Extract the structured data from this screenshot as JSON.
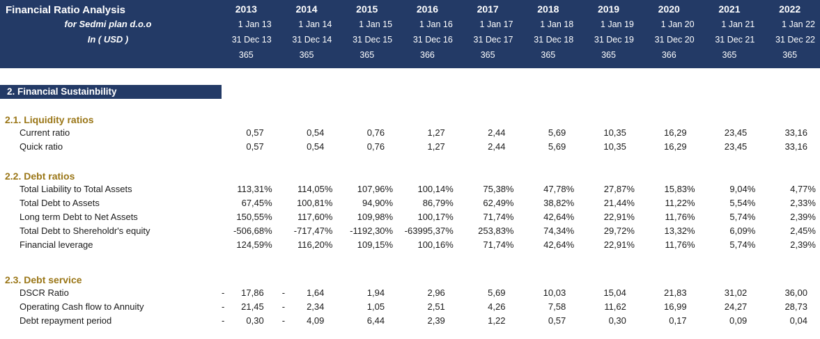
{
  "colors": {
    "navy": "#233A66",
    "gold": "#9A7617"
  },
  "header": {
    "title": "Financial Ratio Analysis",
    "company": "for Sedmi plan d.o.o",
    "currency": "In ( USD )",
    "columns": [
      {
        "year": "2013",
        "start": "1 Jan 13",
        "end": "31 Dec 13",
        "days": "365"
      },
      {
        "year": "2014",
        "start": "1 Jan 14",
        "end": "31 Dec 14",
        "days": "365"
      },
      {
        "year": "2015",
        "start": "1 Jan 15",
        "end": "31 Dec 15",
        "days": "365"
      },
      {
        "year": "2016",
        "start": "1 Jan 16",
        "end": "31 Dec 16",
        "days": "366"
      },
      {
        "year": "2017",
        "start": "1 Jan 17",
        "end": "31 Dec 17",
        "days": "365"
      },
      {
        "year": "2018",
        "start": "1 Jan 18",
        "end": "31 Dec 18",
        "days": "365"
      },
      {
        "year": "2019",
        "start": "1 Jan 19",
        "end": "31 Dec 19",
        "days": "365"
      },
      {
        "year": "2020",
        "start": "1 Jan 20",
        "end": "31 Dec 20",
        "days": "366"
      },
      {
        "year": "2021",
        "start": "1 Jan 21",
        "end": "31 Dec 21",
        "days": "365"
      },
      {
        "year": "2022",
        "start": "1 Jan 22",
        "end": "31 Dec 22",
        "days": "365"
      }
    ]
  },
  "section_bar": "2. Financial Sustainbility",
  "sections": [
    {
      "title": "2.1. Liquidity ratios",
      "rows": [
        {
          "label": "Current ratio",
          "values": [
            "0,57",
            "0,54",
            "0,76",
            "1,27",
            "2,44",
            "5,69",
            "10,35",
            "16,29",
            "23,45",
            "33,16"
          ]
        },
        {
          "label": "Quick ratio",
          "values": [
            "0,57",
            "0,54",
            "0,76",
            "1,27",
            "2,44",
            "5,69",
            "10,35",
            "16,29",
            "23,45",
            "33,16"
          ]
        }
      ]
    },
    {
      "title": "2.2. Debt ratios",
      "rows": [
        {
          "label": "Total Liability to Total Assets",
          "values": [
            "113,31%",
            "114,05%",
            "107,96%",
            "100,14%",
            "75,38%",
            "47,78%",
            "27,87%",
            "15,83%",
            "9,04%",
            "4,77%"
          ]
        },
        {
          "label": "Total Debt to Assets",
          "values": [
            "67,45%",
            "100,81%",
            "94,90%",
            "86,79%",
            "62,49%",
            "38,82%",
            "21,44%",
            "11,22%",
            "5,54%",
            "2,33%"
          ]
        },
        {
          "label": "Long term Debt to Net Assets",
          "values": [
            "150,55%",
            "117,60%",
            "109,98%",
            "100,17%",
            "71,74%",
            "42,64%",
            "22,91%",
            "11,76%",
            "5,74%",
            "2,39%"
          ]
        },
        {
          "label": "Total Debt to Shereholdr's equity",
          "values": [
            "-506,68%",
            "-717,47%",
            "-1192,30%",
            "-63995,37%",
            "253,83%",
            "74,34%",
            "29,72%",
            "13,32%",
            "6,09%",
            "2,45%"
          ]
        },
        {
          "label": "Financial leverage",
          "values": [
            "124,59%",
            "116,20%",
            "109,15%",
            "100,16%",
            "71,74%",
            "42,64%",
            "22,91%",
            "11,76%",
            "5,74%",
            "2,39%"
          ]
        }
      ]
    },
    {
      "title": "2.3. Debt service",
      "rows": [
        {
          "label": "DSCR Ratio",
          "values": [
            "- 17,86",
            "- 1,64",
            "1,94",
            "2,96",
            "5,69",
            "10,03",
            "15,04",
            "21,83",
            "31,02",
            "36,00"
          ]
        },
        {
          "label": "Operating Cash flow to Annuity",
          "values": [
            "- 21,45",
            "- 2,34",
            "1,05",
            "2,51",
            "4,26",
            "7,58",
            "11,62",
            "16,99",
            "24,27",
            "28,73"
          ]
        },
        {
          "label": "Debt repayment period",
          "values": [
            "- 0,30",
            "- 4,09",
            "6,44",
            "2,39",
            "1,22",
            "0,57",
            "0,30",
            "0,17",
            "0,09",
            "0,04"
          ]
        }
      ]
    }
  ]
}
